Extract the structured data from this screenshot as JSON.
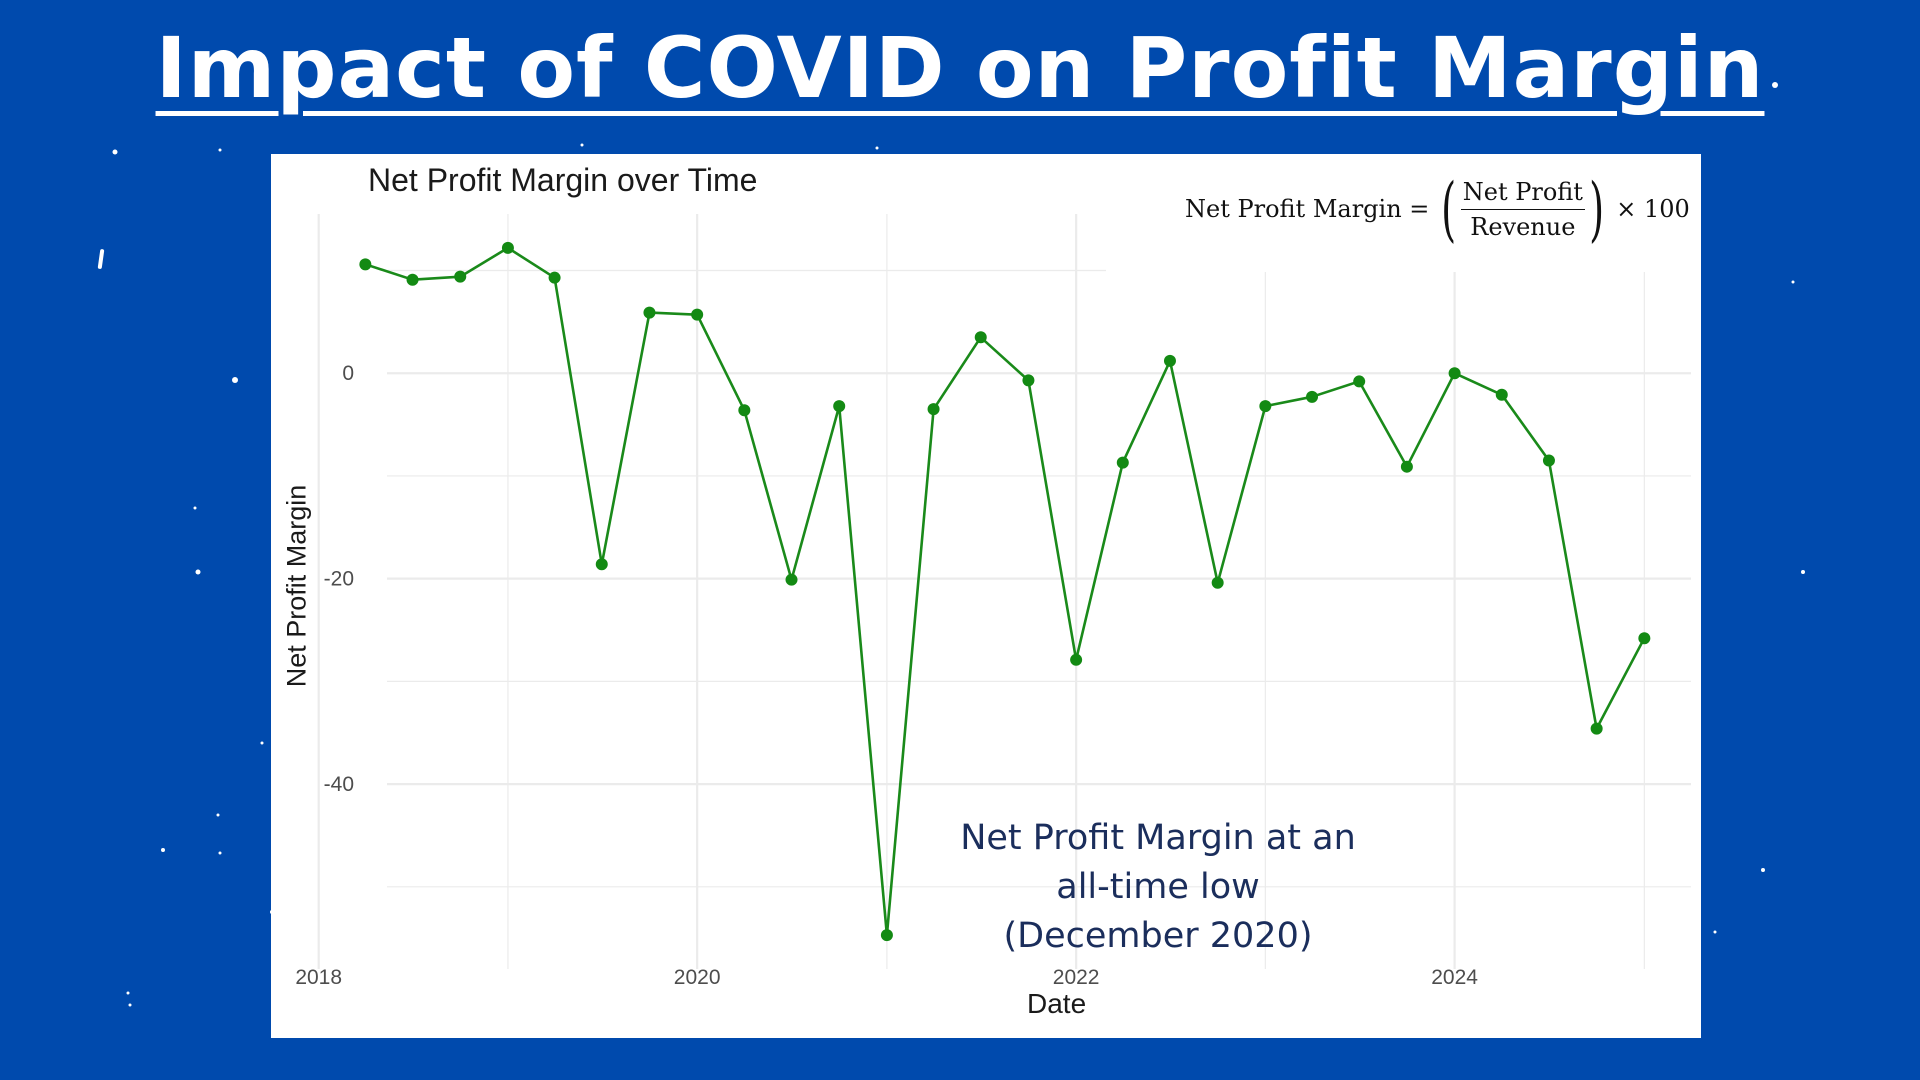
{
  "page": {
    "title": "Impact of COVID on Profit Margin",
    "background_color": "#004aad"
  },
  "formula": {
    "lhs": "Net Profit Margin =",
    "numerator": "Net Profit",
    "denominator": "Revenue",
    "rhs": "× 100"
  },
  "annotation": "Net Profit Margin at an all-time low (December 2020)",
  "chart_data": {
    "type": "line",
    "title": "Net Profit Margin over Time",
    "xlabel": "Date",
    "ylabel": "Net Profit Margin",
    "line_color": "#1a8a1a",
    "x_ticks": [
      "2018",
      "2020",
      "2022",
      "2024"
    ],
    "y_ticks": [
      0,
      -20,
      -40
    ],
    "xlim": [
      "2017-10-01",
      "2025-04-01"
    ],
    "ylim": [
      -58,
      15.5
    ],
    "grid": true,
    "series": [
      {
        "x": [
          "2018-04-01",
          "2018-07-01",
          "2018-10-01",
          "2019-01-01",
          "2019-04-01",
          "2019-07-01",
          "2019-10-01",
          "2020-01-01",
          "2020-04-01",
          "2020-07-01",
          "2020-10-01",
          "2021-01-01",
          "2021-04-01",
          "2021-07-01",
          "2021-10-01",
          "2022-01-01",
          "2022-04-01",
          "2022-07-01",
          "2022-10-01",
          "2023-01-01",
          "2023-04-01",
          "2023-07-01",
          "2023-10-01",
          "2024-01-01",
          "2024-04-01",
          "2024-07-01",
          "2024-10-01",
          "2025-01-01"
        ],
        "y": [
          10.6,
          9.1,
          9.4,
          12.2,
          9.3,
          -18.6,
          5.9,
          5.7,
          -3.6,
          -20.1,
          -3.2,
          -54.7,
          -3.5,
          3.5,
          -0.7,
          -27.9,
          -8.7,
          1.2,
          -20.4,
          -3.2,
          -2.3,
          -0.8,
          -9.1,
          0.0,
          -2.1,
          -8.5,
          -34.6,
          -25.8
        ]
      }
    ]
  }
}
